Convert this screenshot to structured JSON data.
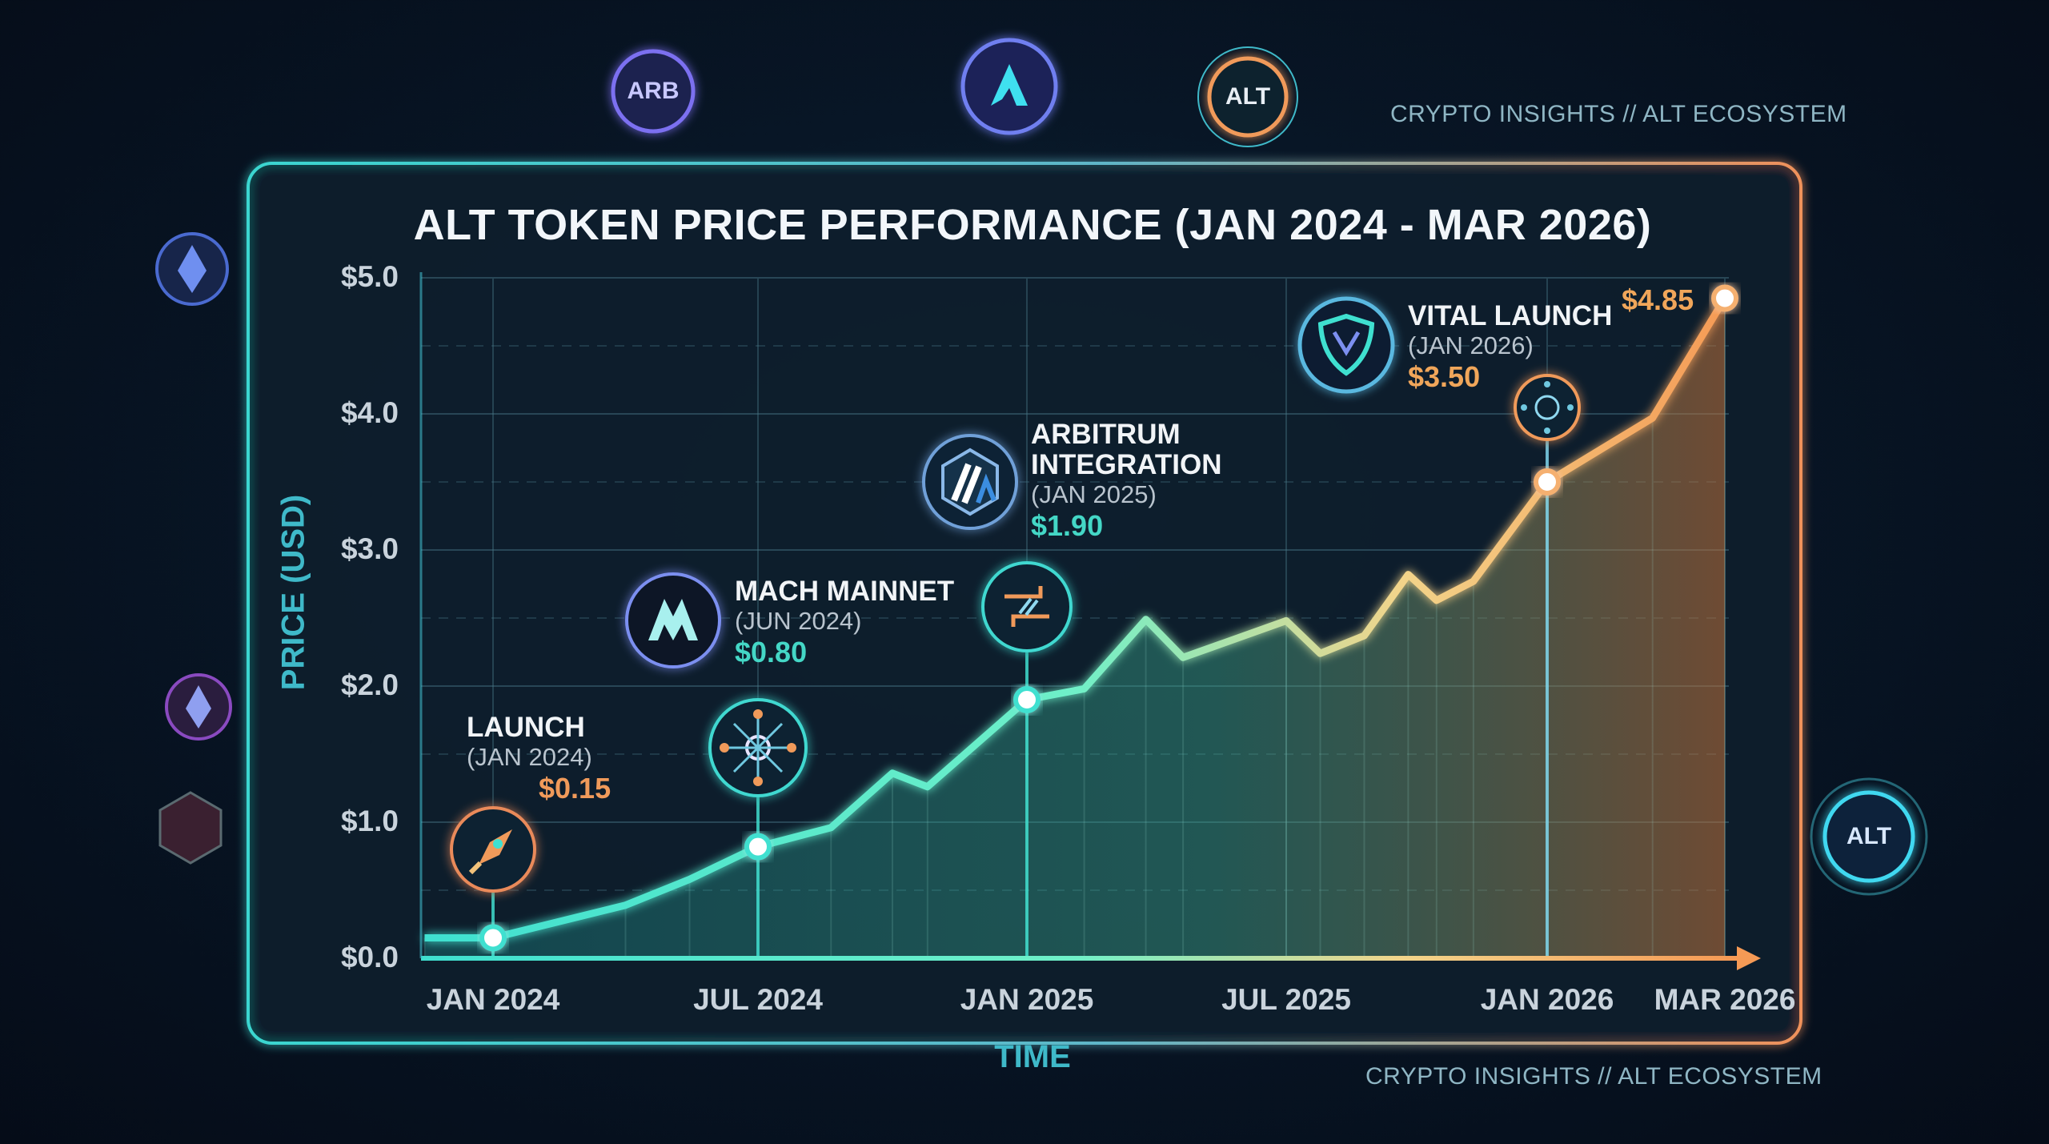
{
  "header": {
    "brand_top": "CRYPTO INSIGHTS // ALT ECOSYSTEM",
    "brand_bottom": "CRYPTO INSIGHTS // ALT ECOSYSTEM"
  },
  "badges": {
    "arb": "ARB",
    "alt_top": "ALT",
    "alt_right": "ALT"
  },
  "colors": {
    "accent_cyan": "#3fe0d0",
    "accent_orange": "#f0a060",
    "background": "#07111f",
    "axis_label": "#3fb9c9"
  },
  "annotations": [
    {
      "name": "LAUNCH",
      "date": "(JAN 2024)",
      "price": "$0.15",
      "icon": "rocket-icon",
      "price_color": "#f09a5a"
    },
    {
      "name": "MACH MAINNET",
      "date": "(JUN 2024)",
      "price": "$0.80",
      "icon": "mach-logo-icon",
      "price_color": "#44d7c6"
    },
    {
      "name_line1": "ARBITRUM",
      "name_line2": "INTEGRATION",
      "date": "(JAN 2025)",
      "price": "$1.90",
      "icon": "arbitrum-logo-icon",
      "price_color": "#44d7c6"
    },
    {
      "name": "VITAL LAUNCH",
      "date": "(JAN 2026)",
      "price": "$3.50",
      "icon": "shield-logo-icon",
      "price_color": "#f0a65a"
    }
  ],
  "end_label": "$4.85",
  "chart_data": {
    "type": "area",
    "title": "ALT TOKEN PRICE PERFORMANCE (JAN 2024 - MAR 2026)",
    "xlabel": "TIME",
    "ylabel": "PRICE (USD)",
    "ylim": [
      0,
      5
    ],
    "yticks": [
      "$0.0",
      "$1.0",
      "$2.0",
      "$3.0",
      "$4.0",
      "$5.0"
    ],
    "xticks": [
      "JAN 2024",
      "JUL 2024",
      "JAN 2025",
      "JUL 2025",
      "JAN 2026",
      "MAR 2026"
    ],
    "grid": true,
    "x": [
      "2023-11-15",
      "2024-01-01",
      "2024-04-01",
      "2024-05-15",
      "2024-07-01",
      "2024-08-20",
      "2024-10-01",
      "2024-10-25",
      "2025-01-01",
      "2025-02-10",
      "2025-03-25",
      "2025-04-20",
      "2025-07-01",
      "2025-07-25",
      "2025-08-25",
      "2025-09-25",
      "2025-10-15",
      "2025-11-10",
      "2026-01-01",
      "2026-02-05",
      "2026-03-01"
    ],
    "values": [
      0.15,
      0.15,
      0.39,
      0.58,
      0.82,
      0.96,
      1.36,
      1.26,
      1.9,
      1.98,
      2.49,
      2.21,
      2.48,
      2.24,
      2.37,
      2.82,
      2.63,
      2.77,
      3.5,
      3.97,
      4.85
    ],
    "highlight_points": [
      "2024-01-01",
      "2024-07-01",
      "2025-01-01",
      "2026-01-01",
      "2026-03-01"
    ]
  }
}
